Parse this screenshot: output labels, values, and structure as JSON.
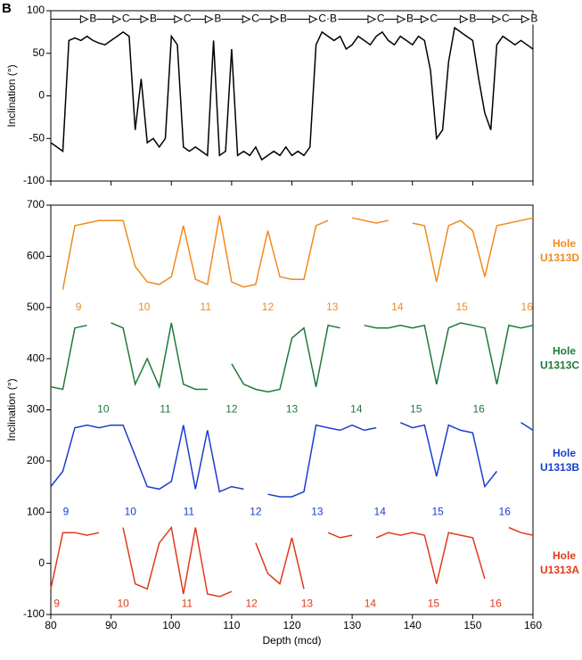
{
  "chart_data": [
    {
      "type": "line",
      "panel_label": "B",
      "ylabel": "Inclination (°)",
      "xlim": [
        80,
        160
      ],
      "xticks": [
        80,
        90,
        100,
        110,
        120,
        130,
        140,
        150,
        160
      ],
      "ylim": [
        -100,
        100
      ],
      "yticks": [
        -100,
        -50,
        0,
        50,
        100
      ],
      "chron_line_y": 90,
      "annotations": [
        {
          "text": "B",
          "x": 87
        },
        {
          "text": "C",
          "x": 92.4
        },
        {
          "text": "B",
          "x": 97
        },
        {
          "text": "C",
          "x": 102.6
        },
        {
          "text": "B",
          "x": 107.7
        },
        {
          "text": "C",
          "x": 113.9
        },
        {
          "text": "B",
          "x": 118.6
        },
        {
          "text": "C·B",
          "x": 125
        },
        {
          "text": "C",
          "x": 134.7
        },
        {
          "text": "B",
          "x": 139.6
        },
        {
          "text": "C",
          "x": 143.5
        },
        {
          "text": "B",
          "x": 150
        },
        {
          "text": "C",
          "x": 155.4
        },
        {
          "text": "B",
          "x": 160.2
        }
      ],
      "series": [
        {
          "color": "#000000",
          "x": [
            80,
            81,
            82,
            83,
            84,
            85,
            86,
            87,
            88,
            89,
            90,
            91,
            92,
            93,
            94,
            95,
            96,
            97,
            98,
            99,
            100,
            101,
            102,
            103,
            104,
            105,
            106,
            107,
            108,
            109,
            110,
            111,
            112,
            113,
            114,
            115,
            116,
            117,
            118,
            119,
            120,
            121,
            122,
            123,
            124,
            125,
            126,
            127,
            128,
            129,
            130,
            131,
            132,
            133,
            134,
            135,
            136,
            137,
            138,
            139,
            140,
            141,
            142,
            143,
            144,
            145,
            146,
            147,
            148,
            149,
            150,
            151,
            152,
            153,
            154,
            155,
            156,
            157,
            158,
            159,
            160
          ],
          "values": [
            -55,
            -60,
            -65,
            65,
            68,
            65,
            70,
            65,
            62,
            60,
            65,
            70,
            75,
            70,
            -40,
            20,
            -55,
            -50,
            -60,
            -50,
            70,
            60,
            -60,
            -65,
            -60,
            -65,
            -70,
            65,
            -70,
            -65,
            55,
            -70,
            -65,
            -70,
            -60,
            -75,
            -70,
            -65,
            -70,
            -60,
            -70,
            -65,
            -70,
            -60,
            60,
            75,
            70,
            65,
            70,
            55,
            60,
            70,
            65,
            60,
            70,
            75,
            65,
            60,
            70,
            65,
            60,
            70,
            65,
            30,
            -50,
            -40,
            40,
            80,
            75,
            70,
            65,
            20,
            -20,
            -40,
            60,
            70,
            65,
            60,
            65,
            60,
            55
          ]
        }
      ]
    },
    {
      "type": "line",
      "ylabel": "Inclination (°)",
      "xlabel": "Depth (mcd)",
      "xlim": [
        80,
        160
      ],
      "xticks": [
        80,
        90,
        100,
        110,
        120,
        130,
        140,
        150,
        160
      ],
      "ylim": [
        -100,
        700
      ],
      "yticks": [
        -100,
        0,
        100,
        200,
        300,
        400,
        500,
        600,
        700
      ],
      "series": [
        {
          "label": [
            "Hole",
            "U1313D"
          ],
          "color": "#f08a1e",
          "label_at": 610,
          "core_label_y": 500,
          "core_labels": [
            {
              "text": "9",
              "x": 84.6
            },
            {
              "text": "10",
              "x": 95.5
            },
            {
              "text": "11",
              "x": 105.7
            },
            {
              "text": "12",
              "x": 116
            },
            {
              "text": "13",
              "x": 126.7
            },
            {
              "text": "14",
              "x": 137.5
            },
            {
              "text": "15",
              "x": 148.2
            },
            {
              "text": "16",
              "x": 159
            }
          ],
          "x": [
            80,
            82,
            84,
            86,
            88,
            90,
            92,
            94,
            96,
            98,
            100,
            102,
            104,
            106,
            108,
            110,
            112,
            114,
            116,
            118,
            120,
            122,
            124,
            126,
            128,
            130,
            132,
            134,
            136,
            138,
            140,
            142,
            144,
            146,
            148,
            150,
            152,
            154,
            156,
            158,
            160
          ],
          "values": [
            null,
            535,
            660,
            665,
            670,
            670,
            670,
            580,
            550,
            545,
            560,
            660,
            555,
            545,
            680,
            550,
            540,
            545,
            650,
            560,
            555,
            555,
            660,
            670,
            null,
            675,
            670,
            665,
            670,
            null,
            665,
            660,
            550,
            660,
            670,
            650,
            560,
            660,
            665,
            670,
            675
          ]
        },
        {
          "label": [
            "Hole",
            "U1313C"
          ],
          "color": "#1e7a3a",
          "label_at": 400,
          "core_label_y": 300,
          "core_labels": [
            {
              "text": "10",
              "x": 88.7
            },
            {
              "text": "11",
              "x": 99
            },
            {
              "text": "12",
              "x": 110
            },
            {
              "text": "13",
              "x": 120
            },
            {
              "text": "14",
              "x": 130.7
            },
            {
              "text": "15",
              "x": 140.6
            },
            {
              "text": "16",
              "x": 151
            }
          ],
          "x": [
            80,
            82,
            84,
            86,
            88,
            90,
            92,
            94,
            96,
            98,
            100,
            102,
            104,
            106,
            108,
            110,
            112,
            114,
            116,
            118,
            120,
            122,
            124,
            126,
            128,
            130,
            132,
            134,
            136,
            138,
            140,
            142,
            144,
            146,
            148,
            150,
            152,
            154,
            156,
            158,
            160
          ],
          "values": [
            345,
            340,
            460,
            465,
            null,
            470,
            460,
            350,
            400,
            345,
            470,
            350,
            340,
            340,
            null,
            390,
            350,
            340,
            335,
            340,
            440,
            460,
            345,
            465,
            460,
            null,
            465,
            460,
            460,
            465,
            460,
            465,
            350,
            460,
            470,
            465,
            460,
            350,
            465,
            460,
            465
          ]
        },
        {
          "label": [
            "Hole",
            "U1313B"
          ],
          "color": "#1a3fcc",
          "label_at": 200,
          "core_label_y": 100,
          "core_labels": [
            {
              "text": "9",
              "x": 82.5
            },
            {
              "text": "10",
              "x": 93.2
            },
            {
              "text": "11",
              "x": 102.9
            },
            {
              "text": "12",
              "x": 114
            },
            {
              "text": "13",
              "x": 124.2
            },
            {
              "text": "14",
              "x": 134.6
            },
            {
              "text": "15",
              "x": 144.2
            },
            {
              "text": "16",
              "x": 155.3
            }
          ],
          "x": [
            80,
            82,
            84,
            86,
            88,
            90,
            92,
            94,
            96,
            98,
            100,
            102,
            104,
            106,
            108,
            110,
            112,
            114,
            116,
            118,
            120,
            122,
            124,
            126,
            128,
            130,
            132,
            134,
            136,
            138,
            140,
            142,
            144,
            146,
            148,
            150,
            152,
            154,
            156,
            158,
            160
          ],
          "values": [
            150,
            180,
            265,
            270,
            265,
            270,
            270,
            210,
            150,
            145,
            160,
            270,
            145,
            260,
            140,
            150,
            145,
            null,
            135,
            130,
            130,
            140,
            270,
            265,
            260,
            270,
            260,
            265,
            null,
            275,
            265,
            270,
            170,
            270,
            260,
            255,
            150,
            180,
            null,
            275,
            260
          ]
        },
        {
          "label": [
            "Hole",
            "U1313A"
          ],
          "color": "#e03a1a",
          "label_at": 0,
          "core_label_y": -80,
          "core_labels": [
            {
              "text": "9",
              "x": 81
            },
            {
              "text": "10",
              "x": 92
            },
            {
              "text": "11",
              "x": 102.6
            },
            {
              "text": "12",
              "x": 113.3
            },
            {
              "text": "13",
              "x": 122.5
            },
            {
              "text": "14",
              "x": 133
            },
            {
              "text": "15",
              "x": 143.5
            },
            {
              "text": "16",
              "x": 153.8
            }
          ],
          "x": [
            80,
            82,
            84,
            86,
            88,
            90,
            92,
            94,
            96,
            98,
            100,
            102,
            104,
            106,
            108,
            110,
            112,
            114,
            116,
            118,
            120,
            122,
            124,
            126,
            128,
            130,
            132,
            134,
            136,
            138,
            140,
            142,
            144,
            146,
            148,
            150,
            152,
            154,
            156,
            158,
            160
          ],
          "values": [
            -50,
            60,
            60,
            55,
            60,
            null,
            70,
            -40,
            -50,
            40,
            70,
            -60,
            70,
            -60,
            -65,
            -55,
            null,
            40,
            -20,
            -40,
            50,
            -50,
            null,
            60,
            50,
            55,
            null,
            50,
            60,
            55,
            60,
            55,
            -40,
            60,
            55,
            50,
            -30,
            null,
            70,
            60,
            55
          ]
        }
      ]
    }
  ]
}
